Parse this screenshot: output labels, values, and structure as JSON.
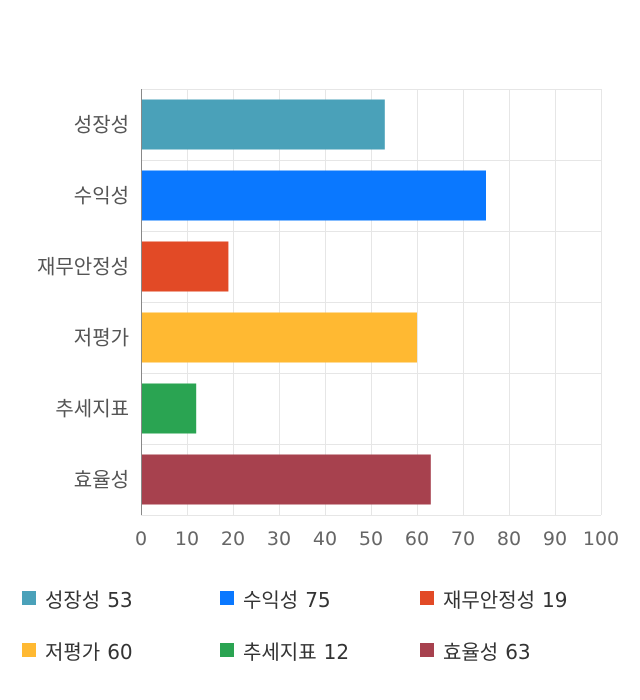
{
  "chart_data": {
    "type": "bar",
    "orientation": "horizontal",
    "categories": [
      "성장성",
      "수익성",
      "재무안정성",
      "저평가",
      "추세지표",
      "효율성"
    ],
    "values": [
      53,
      75,
      19,
      60,
      12,
      63
    ],
    "colors": [
      "#4aa1b9",
      "#0a78ff",
      "#e24a26",
      "#ffb932",
      "#2aa452",
      "#a7414e"
    ],
    "xlim": [
      0,
      100
    ],
    "xticks": [
      0,
      10,
      20,
      30,
      40,
      50,
      60,
      70,
      80,
      90,
      100
    ],
    "grid": true,
    "legend_position": "bottom"
  },
  "legend": [
    {
      "label": "성장성",
      "value": "53",
      "color": "#4aa1b9"
    },
    {
      "label": "수익성",
      "value": "75",
      "color": "#0a78ff"
    },
    {
      "label": "재무안정성",
      "value": "19",
      "color": "#e24a26"
    },
    {
      "label": "저평가",
      "value": "60",
      "color": "#ffb932"
    },
    {
      "label": "추세지표",
      "value": "12",
      "color": "#2aa452"
    },
    {
      "label": "효율성",
      "value": "63",
      "color": "#a7414e"
    }
  ]
}
